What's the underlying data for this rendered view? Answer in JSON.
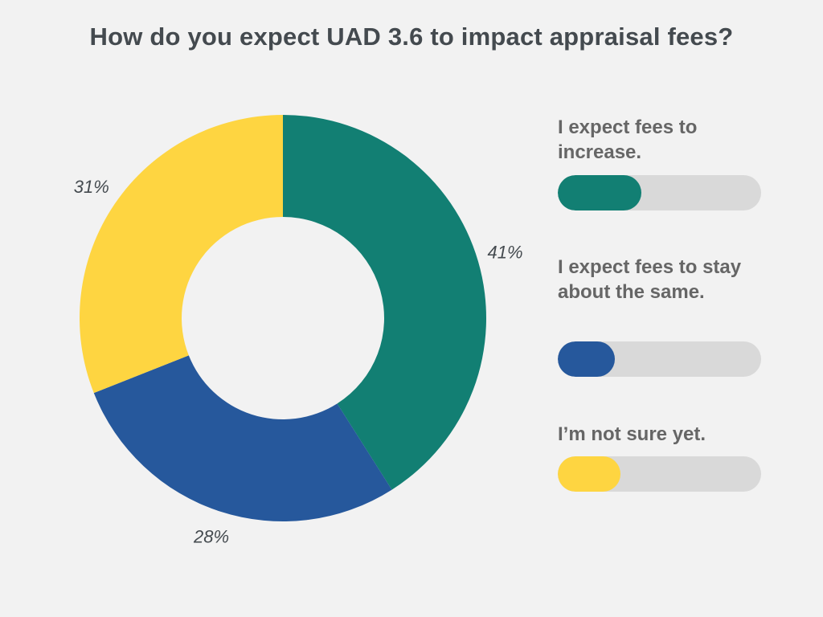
{
  "chart_data": {
    "type": "pie",
    "title": "How do you expect UAD 3.6 to impact appraisal fees?",
    "donut": true,
    "series": [
      {
        "name": "I expect fees to increase.",
        "value": 41,
        "label": "41%",
        "color": "#127f73"
      },
      {
        "name": "I expect fees to stay about the same.",
        "value": 28,
        "label": "28%",
        "color": "#26589c"
      },
      {
        "name": "I’m not sure yet.",
        "value": 31,
        "label": "31%",
        "color": "#fed541"
      }
    ],
    "track_color": "#d9d9d9",
    "start_angle": "12 o'clock",
    "direction": "clockwise"
  }
}
